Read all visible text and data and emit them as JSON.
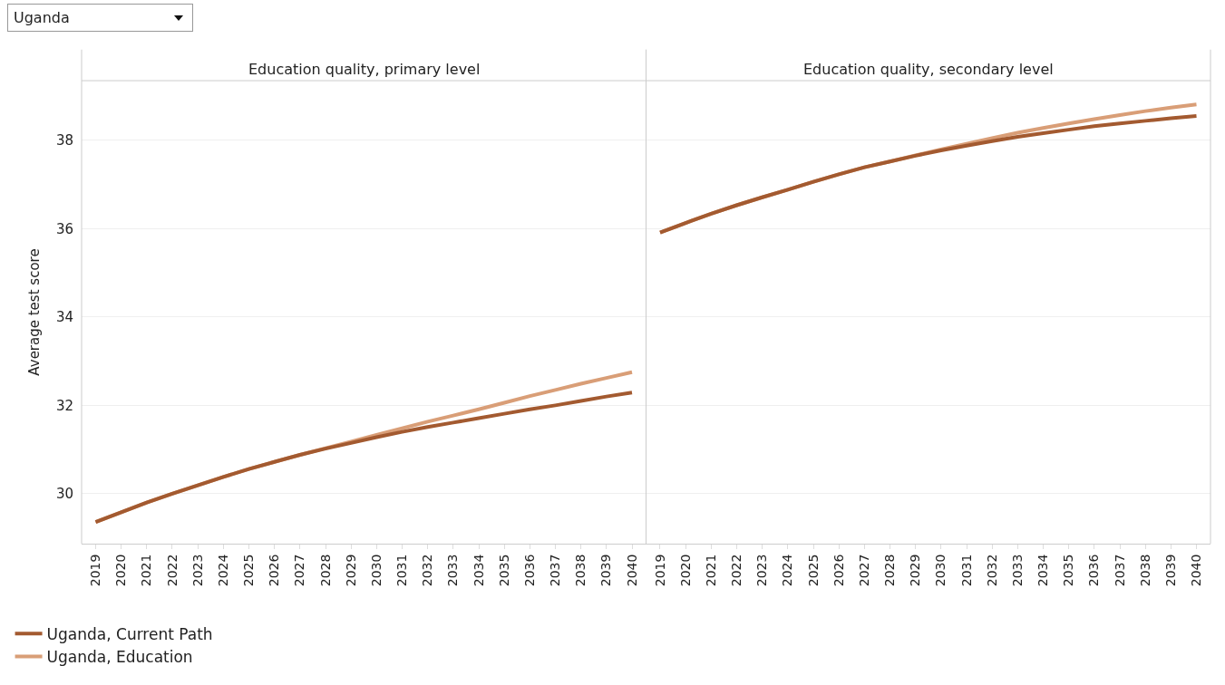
{
  "chart_data": [
    {
      "type": "line",
      "title": "Education quality, primary level",
      "ylabel": "Average test score",
      "annotations": [
        "Uganda"
      ],
      "categories": [
        "2019",
        "2020",
        "2021",
        "2022",
        "2023",
        "2024",
        "2025",
        "2026",
        "2027",
        "2028",
        "2029",
        "2030",
        "2031",
        "2032",
        "2033",
        "2034",
        "2035",
        "2036",
        "2037",
        "2038",
        "2039",
        "2040"
      ],
      "series": [
        {
          "name": "Uganda, Current Path",
          "color": "#a35a30",
          "values": [
            29.36,
            29.58,
            29.8,
            30.0,
            30.19,
            30.38,
            30.56,
            30.72,
            30.88,
            31.02,
            31.15,
            31.28,
            31.4,
            31.51,
            31.61,
            31.71,
            31.81,
            31.91,
            32.0,
            32.1,
            32.2,
            32.29
          ]
        },
        {
          "name": "Uganda, Education",
          "color": "#d99e77",
          "values": [
            29.36,
            29.58,
            29.8,
            30.0,
            30.19,
            30.38,
            30.56,
            30.72,
            30.88,
            31.03,
            31.18,
            31.33,
            31.48,
            31.63,
            31.77,
            31.91,
            32.06,
            32.21,
            32.35,
            32.49,
            32.62,
            32.75
          ]
        }
      ],
      "ylim": [
        28.87,
        39.35
      ],
      "yticks": [
        30,
        32,
        34,
        36,
        38
      ],
      "grid": "y",
      "legend": "bottom left",
      "marker": "none",
      "line_style": "solid"
    },
    {
      "type": "line",
      "title": "Education quality, secondary level",
      "categories": [
        "2019",
        "2020",
        "2021",
        "2022",
        "2023",
        "2024",
        "2025",
        "2026",
        "2027",
        "2028",
        "2029",
        "2030",
        "2031",
        "2032",
        "2033",
        "2034",
        "2035",
        "2036",
        "2037",
        "2038",
        "2039",
        "2040"
      ],
      "series": [
        {
          "color": "#a35a30",
          "values": [
            35.91,
            36.13,
            36.34,
            36.53,
            36.71,
            36.88,
            37.06,
            37.23,
            37.39,
            37.52,
            37.65,
            37.77,
            37.88,
            37.98,
            38.08,
            38.16,
            38.24,
            38.32,
            38.38,
            38.44,
            38.5,
            38.55
          ]
        },
        {
          "color": "#d99e77",
          "values": [
            35.91,
            36.13,
            36.34,
            36.53,
            36.71,
            36.88,
            37.06,
            37.23,
            37.39,
            37.52,
            37.66,
            37.79,
            37.92,
            38.05,
            38.17,
            38.28,
            38.38,
            38.48,
            38.57,
            38.66,
            38.74,
            38.81
          ]
        }
      ],
      "ylim": [
        28.87,
        39.35
      ],
      "yticks": [
        30,
        32,
        34,
        36,
        38
      ],
      "grid": "y",
      "tick_labels": "x",
      "marker": "none",
      "line_style": "solid"
    }
  ]
}
